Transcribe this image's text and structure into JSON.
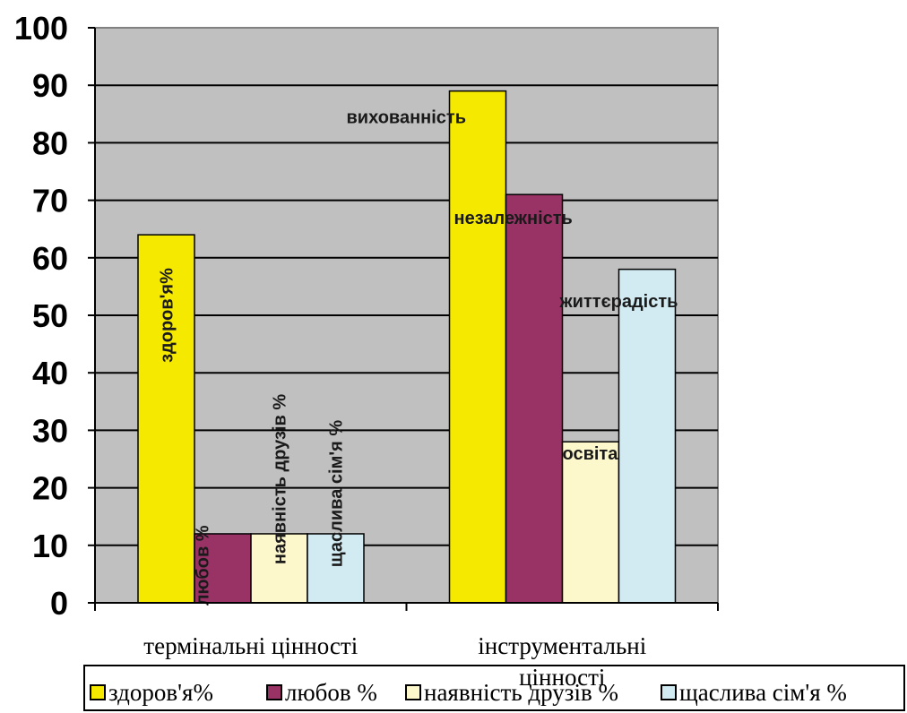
{
  "chart_data": {
    "type": "bar",
    "categories": [
      "термінальні цінності",
      "інструментальні цінності"
    ],
    "series": [
      {
        "name": "здоров'я%",
        "color": "#f5e900",
        "values": [
          64,
          89
        ]
      },
      {
        "name": "любов %",
        "color": "#993366",
        "values": [
          12,
          71
        ]
      },
      {
        "name": "наявність друзів %",
        "color": "#fdf8cc",
        "values": [
          12,
          28
        ]
      },
      {
        "name": "щаслива сім'я %",
        "color": "#d2ebf2",
        "values": [
          12,
          58
        ]
      }
    ],
    "bar_labels": [
      [
        "здоров'я%",
        "любов %",
        "наявність друзів %",
        "щаслива сім'я %"
      ],
      [
        "вихованність",
        "незалежність",
        "освіта",
        "життєрадість"
      ]
    ],
    "title": "",
    "xlabel": "",
    "ylabel": "",
    "ylim": [
      0,
      100
    ],
    "yticks": [
      0,
      10,
      20,
      30,
      40,
      50,
      60,
      70,
      80,
      90,
      100
    ],
    "grid": true,
    "plot_background": "#c0c0c0",
    "legend_position": "bottom"
  }
}
